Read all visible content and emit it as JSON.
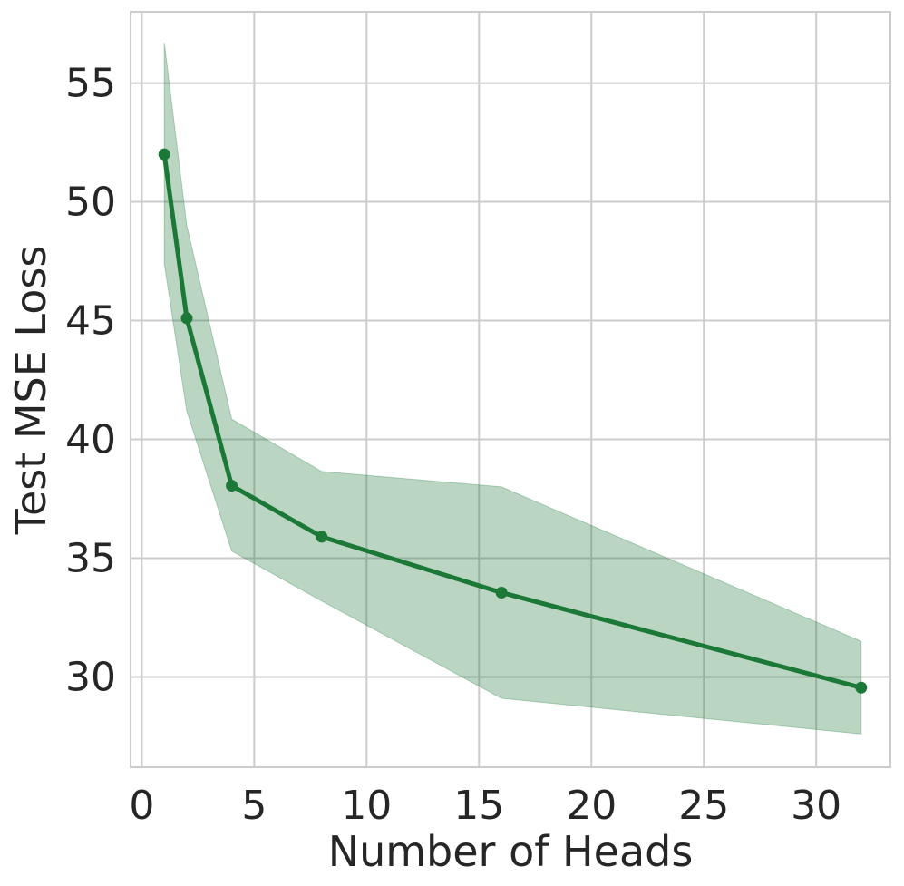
{
  "chart_data": {
    "type": "line",
    "xlabel": "Number of Heads",
    "ylabel": "Test MSE Loss",
    "xlim": [
      -0.5,
      33.3
    ],
    "ylim": [
      26.2,
      58.0
    ],
    "xticks": [
      0,
      5,
      10,
      15,
      20,
      25,
      30
    ],
    "yticks": [
      30,
      35,
      40,
      45,
      50,
      55
    ],
    "xtick_labels": [
      "0",
      "5",
      "10",
      "15",
      "20",
      "25",
      "30"
    ],
    "ytick_labels": [
      "30",
      "35",
      "40",
      "45",
      "50",
      "55"
    ],
    "grid": true,
    "series": [
      {
        "x": [
          1,
          2,
          4,
          8,
          16,
          32
        ],
        "y": [
          52.0,
          45.1,
          38.05,
          35.9,
          33.55,
          29.55
        ],
        "upper": [
          56.7,
          49.0,
          40.85,
          38.65,
          38.0,
          31.5
        ],
        "lower": [
          47.4,
          41.2,
          35.3,
          33.2,
          29.1,
          27.6
        ],
        "color": "#1b7837",
        "band_color": "#1b7837"
      }
    ]
  }
}
